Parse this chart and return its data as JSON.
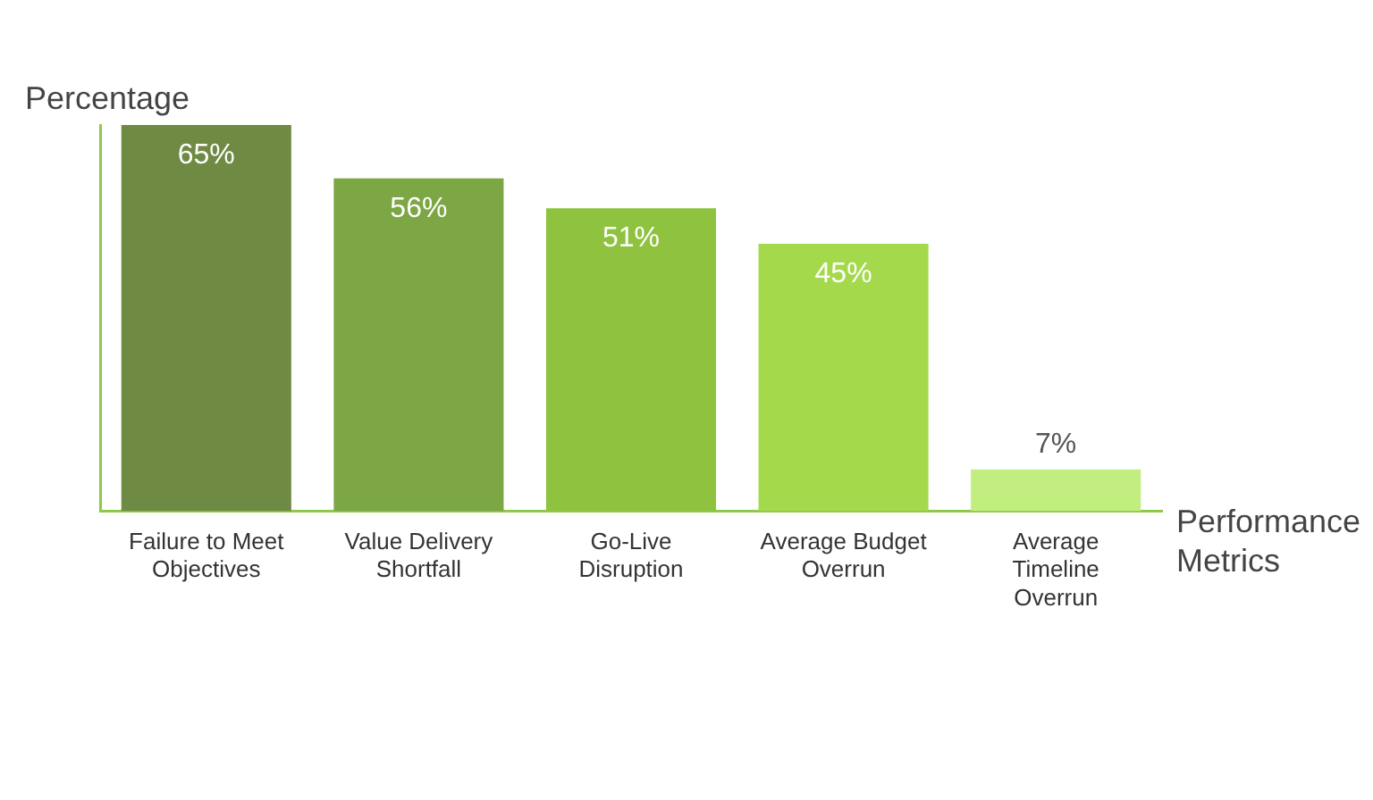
{
  "chart_data": {
    "type": "bar",
    "xlabel": "Performance Metrics",
    "ylabel": "Percentage",
    "categories": [
      "Failure to Meet Objectives",
      "Value Delivery Shortfall",
      "Go-Live Disruption",
      "Average Budget Overrun",
      "Average Timeline Overrun"
    ],
    "values": [
      65,
      56,
      51,
      45,
      7
    ],
    "colors": [
      "#6f8a43",
      "#7da645",
      "#8fc23f",
      "#a4d94c",
      "#c2ee80"
    ],
    "value_labels": [
      "65%",
      "56%",
      "51%",
      "45%",
      "7%"
    ],
    "tick_labels": "x",
    "grid": false,
    "legend": false
  }
}
